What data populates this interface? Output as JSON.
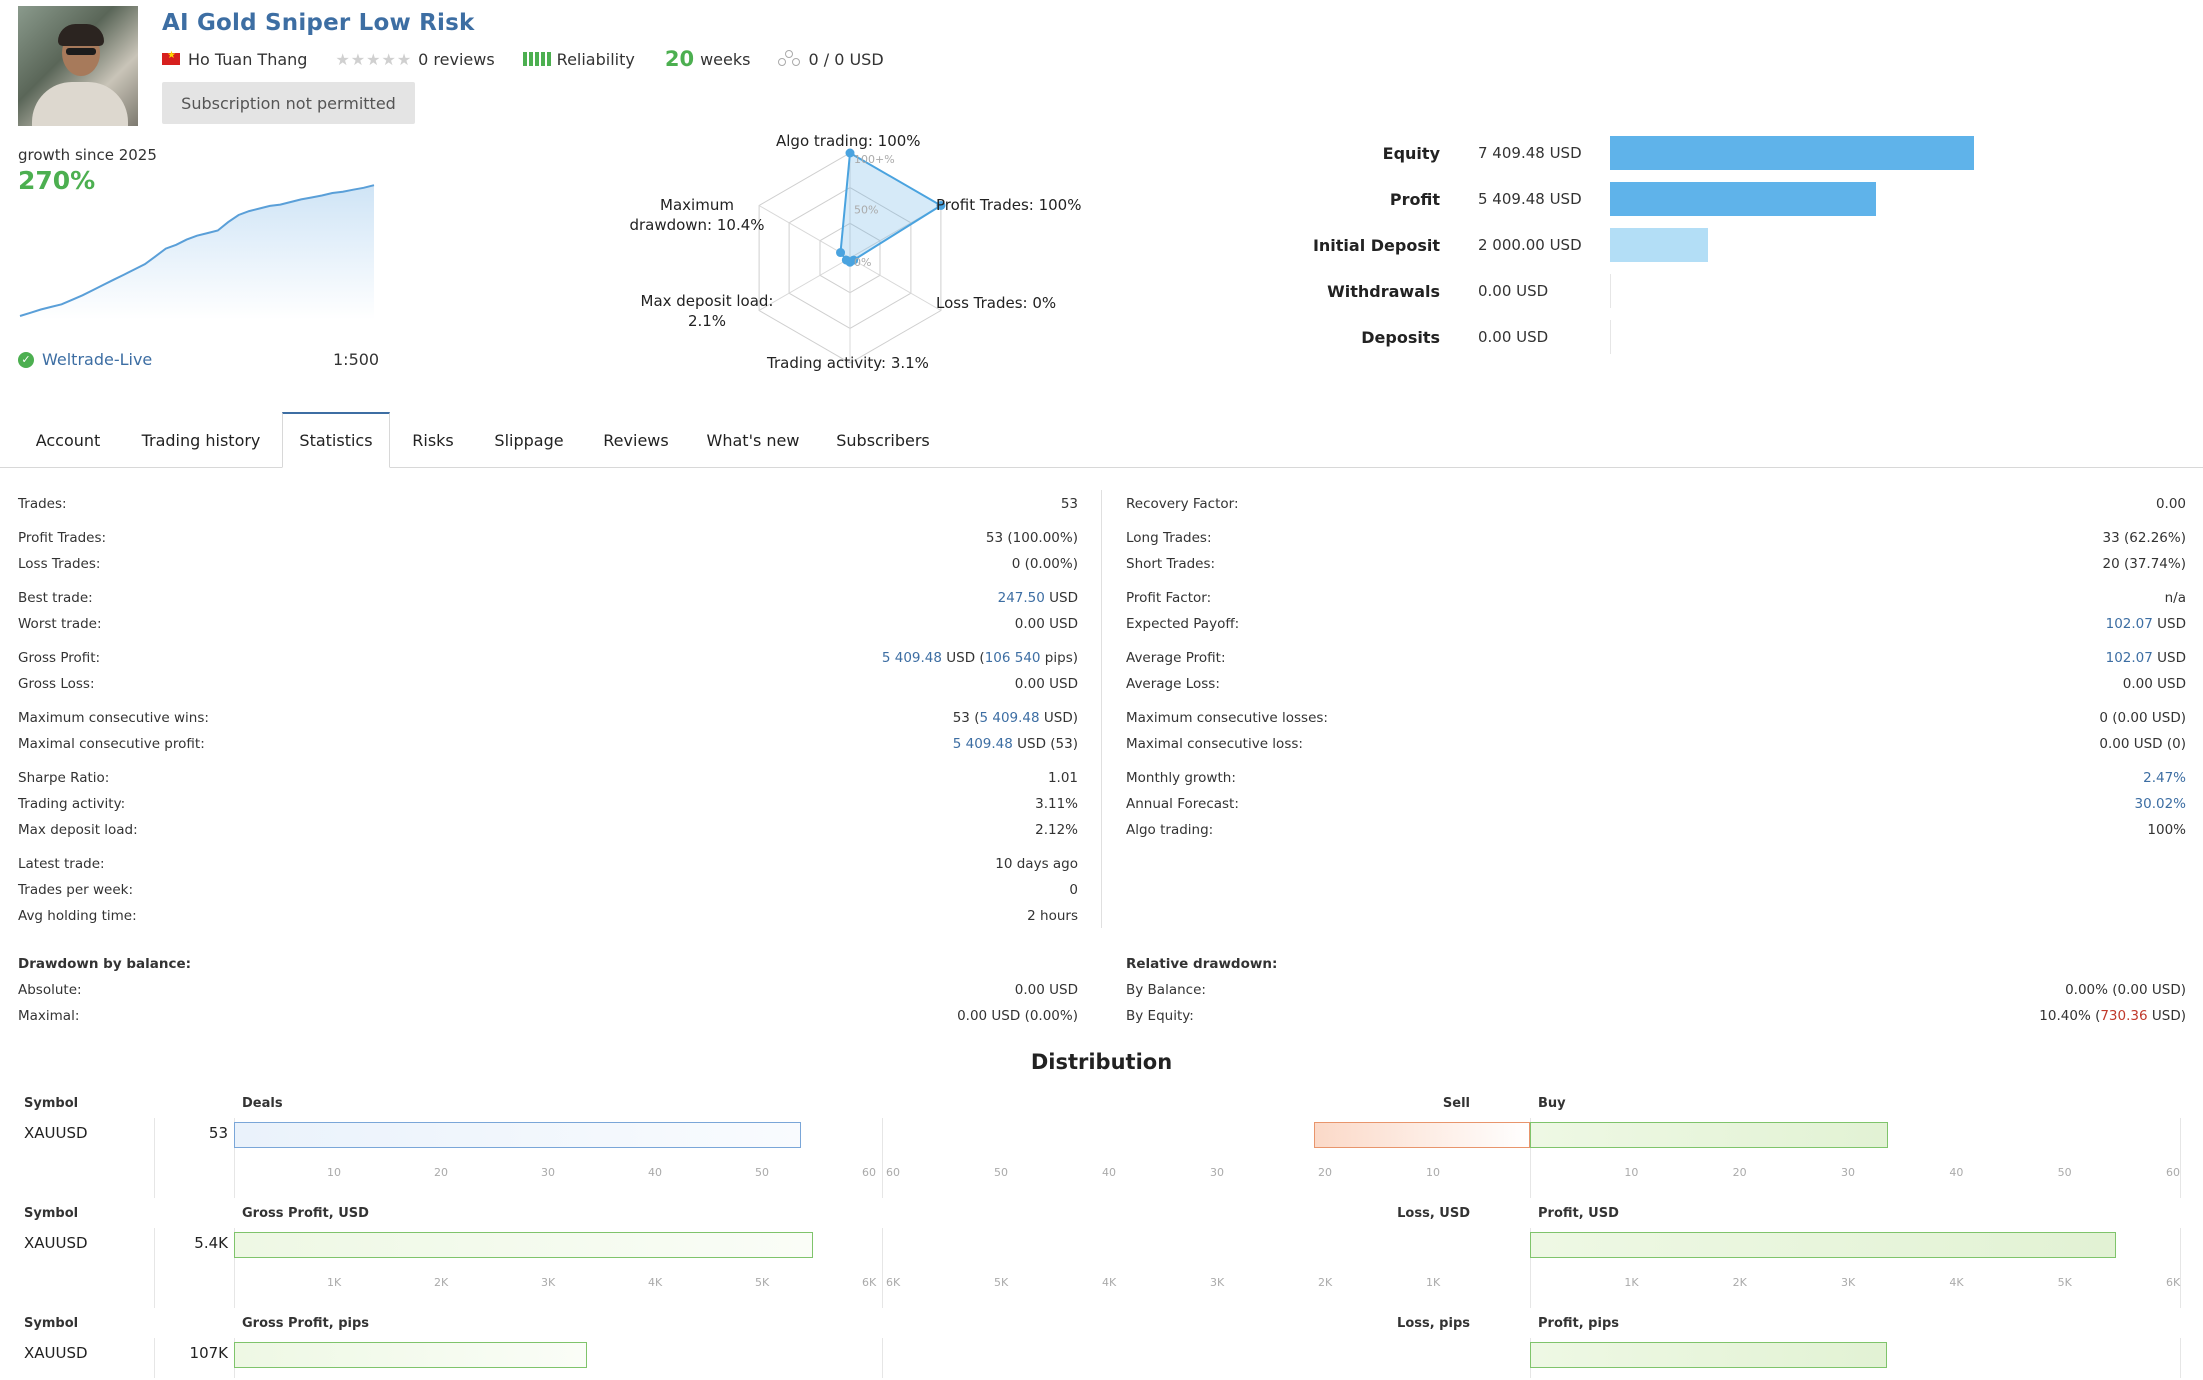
{
  "header": {
    "title": "AI Gold Sniper Low Risk",
    "author": "Ho Tuan Thang",
    "reviews": "0 reviews",
    "reliability_label": "Reliability",
    "weeks_num": "20",
    "weeks_label": "weeks",
    "subscribers_text": "0 / 0 USD",
    "subscribe_button": "Subscription not permitted"
  },
  "growth": {
    "label": "growth since 2025",
    "value": "270%",
    "server": "Weltrade-Live",
    "leverage": "1:500",
    "curve": [
      0,
      5,
      10,
      14,
      18,
      25,
      32,
      40,
      48,
      56,
      64,
      72,
      80,
      92,
      104,
      110,
      118,
      124,
      128,
      132,
      145,
      156,
      162,
      166,
      170,
      172,
      176,
      180,
      183,
      186,
      190,
      192,
      195,
      198,
      202
    ]
  },
  "radar": {
    "labels": {
      "algo": "Algo trading: 100%",
      "profit": "Profit Trades: 100%",
      "loss": "Loss Trades: 0%",
      "activity": "Trading activity: 3.1%",
      "deposit_load_1": "Max deposit load:",
      "deposit_load_2": "2.1%",
      "drawdown_1": "Maximum",
      "drawdown_2": "drawdown: 10.4%",
      "ring_100": "100+%",
      "ring_50": "50%",
      "ring_0": "0%"
    },
    "values": {
      "algo": 100,
      "profit": 100,
      "loss": 0,
      "activity": 3.1,
      "deposit_load": 2.1,
      "drawdown": 10.4
    }
  },
  "balance_bars": {
    "rows": [
      {
        "label": "Equity",
        "value": "7 409.48 USD",
        "amount": 7409.48,
        "color": "#5fb3ea"
      },
      {
        "label": "Profit",
        "value": "5 409.48 USD",
        "amount": 5409.48,
        "color": "#5fb3ea"
      },
      {
        "label": "Initial Deposit",
        "value": "2 000.00 USD",
        "amount": 2000.0,
        "color": "#b3def6"
      },
      {
        "label": "Withdrawals",
        "value": "0.00 USD",
        "amount": 0,
        "color": "#5fb3ea"
      },
      {
        "label": "Deposits",
        "value": "0.00 USD",
        "amount": 0,
        "color": "#5fb3ea"
      }
    ]
  },
  "tabs": [
    "Account",
    "Trading history",
    "Statistics",
    "Risks",
    "Slippage",
    "Reviews",
    "What's new",
    "Subscribers"
  ],
  "stats_left": {
    "trades_l": "Trades:",
    "trades_v": "53",
    "profit_trades_l": "Profit Trades:",
    "profit_trades_v": "53 (100.00%)",
    "loss_trades_l": "Loss Trades:",
    "loss_trades_v": "0 (0.00%)",
    "best_l": "Best trade:",
    "best_v1": "247.50",
    "best_v2": " USD",
    "worst_l": "Worst trade:",
    "worst_v": "0.00 USD",
    "gp_l": "Gross Profit:",
    "gp_v1": "5 409.48",
    "gp_v2": " USD (",
    "gp_v3": "106 540",
    "gp_v4": " pips)",
    "gl_l": "Gross Loss:",
    "gl_v": "0.00 USD",
    "mcw_l": "Maximum consecutive wins:",
    "mcw_v1": "53 (",
    "mcw_v2": "5 409.48",
    "mcw_v3": " USD)",
    "mcp_l": "Maximal consecutive profit:",
    "mcp_v1": "5 409.48",
    "mcp_v2": " USD (53)",
    "sharpe_l": "Sharpe Ratio:",
    "sharpe_v": "1.01",
    "activity_l": "Trading activity:",
    "activity_v": "3.11%",
    "load_l": "Max deposit load:",
    "load_v": "2.12%",
    "latest_l": "Latest trade:",
    "latest_v": "10 days ago",
    "tpw_l": "Trades per week:",
    "tpw_v": "0",
    "hold_l": "Avg holding time:",
    "hold_v": "2 hours",
    "ddb_l": "Drawdown by balance:",
    "abs_l": "Absolute:",
    "abs_v": "0.00 USD",
    "max_l": "Maximal:",
    "max_v": "0.00 USD (0.00%)"
  },
  "stats_right": {
    "rf_l": "Recovery Factor:",
    "rf_v": "0.00",
    "long_l": "Long Trades:",
    "long_v": "33 (62.26%)",
    "short_l": "Short Trades:",
    "short_v": "20 (37.74%)",
    "pf_l": "Profit Factor:",
    "pf_v": "n/a",
    "ep_l": "Expected Payoff:",
    "ep_v1": "102.07",
    "ep_v2": " USD",
    "ap_l": "Average Profit:",
    "ap_v1": "102.07",
    "ap_v2": " USD",
    "al_l": "Average Loss:",
    "al_v": "0.00 USD",
    "mcl_l": "Maximum consecutive losses:",
    "mcl_v": "0 (0.00 USD)",
    "mcloss_l": "Maximal consecutive loss:",
    "mcloss_v": "0.00 USD (0)",
    "mg_l": "Monthly growth:",
    "mg_v": "2.47%",
    "af_l": "Annual Forecast:",
    "af_v": "30.02%",
    "algo_l": "Algo trading:",
    "algo_v": "100%",
    "rd_l": "Relative drawdown:",
    "bb_l": "By Balance:",
    "bb_v": "0.00% (0.00 USD)",
    "be_l": "By Equity:",
    "be_v1": "10.40% (",
    "be_v2": "730.36",
    "be_v3": " USD)"
  },
  "distribution": {
    "title": "Distribution",
    "symbol_header": "Symbol",
    "rows": [
      {
        "symbol": "XAUUSD",
        "num": "53",
        "left_header": "Deals",
        "right_neg_header": "Sell",
        "right_pos_header": "Buy",
        "left_value": 53,
        "right_neg_value": 20,
        "right_pos_value": 33,
        "ticks": [
          "10",
          "20",
          "30",
          "40",
          "50",
          "60"
        ],
        "left_color": "#eaf2fb",
        "left_border": "#7aa6d8"
      },
      {
        "symbol": "XAUUSD",
        "num": "5.4K",
        "left_header": "Gross Profit, USD",
        "right_neg_header": "Loss, USD",
        "right_pos_header": "Profit, USD",
        "left_value": 5409.48,
        "right_neg_value": 0,
        "right_pos_value": 5409.48,
        "ticks": [
          "1K",
          "2K",
          "3K",
          "4K",
          "5K",
          "6K"
        ],
        "left_color": "#eef8e4",
        "left_border": "#7fc46b"
      },
      {
        "symbol": "XAUUSD",
        "num": "107K",
        "left_header": "Gross Profit, pips",
        "right_neg_header": "Loss, pips",
        "right_pos_header": "Profit, pips",
        "left_value": 106540,
        "right_neg_value": 0,
        "right_pos_value": 106540,
        "ticks": [],
        "left_color": "#eef8e4",
        "left_border": "#7fc46b"
      }
    ]
  }
}
